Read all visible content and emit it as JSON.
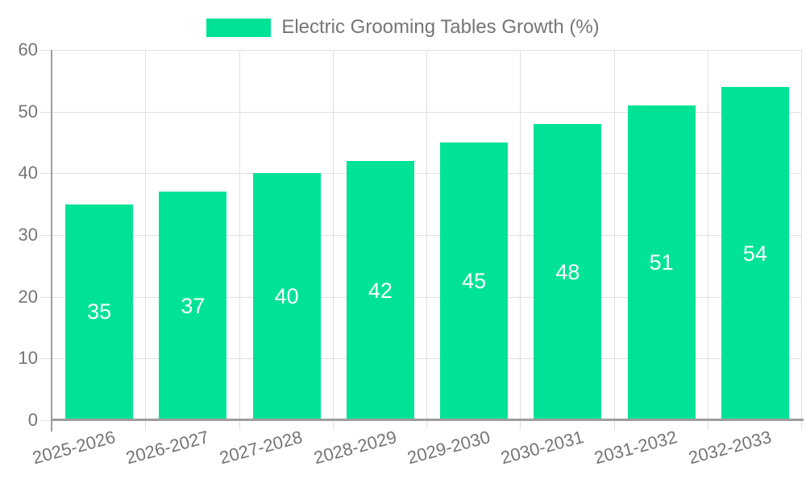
{
  "chart_data": {
    "type": "bar",
    "title": "Electric Grooming Tables Growth (%)",
    "categories": [
      "2025-2026",
      "2026-2027",
      "2027-2028",
      "2028-2029",
      "2029-2030",
      "2030-2031",
      "2031-2032",
      "2032-2033"
    ],
    "values": [
      35,
      37,
      40,
      42,
      45,
      48,
      51,
      54
    ],
    "xlabel": "",
    "ylabel": "",
    "ylim": [
      0,
      60
    ],
    "yticks": [
      0,
      10,
      20,
      30,
      40,
      50,
      60
    ],
    "grid": true,
    "legend_position": "top-center",
    "bar_color": "#00e396",
    "value_label_color": "#ffffff",
    "axis_line_color": "#9e9e9e",
    "grid_color": "#e0e0e0",
    "text_color": "#757575",
    "background_color": "#ffffff"
  }
}
